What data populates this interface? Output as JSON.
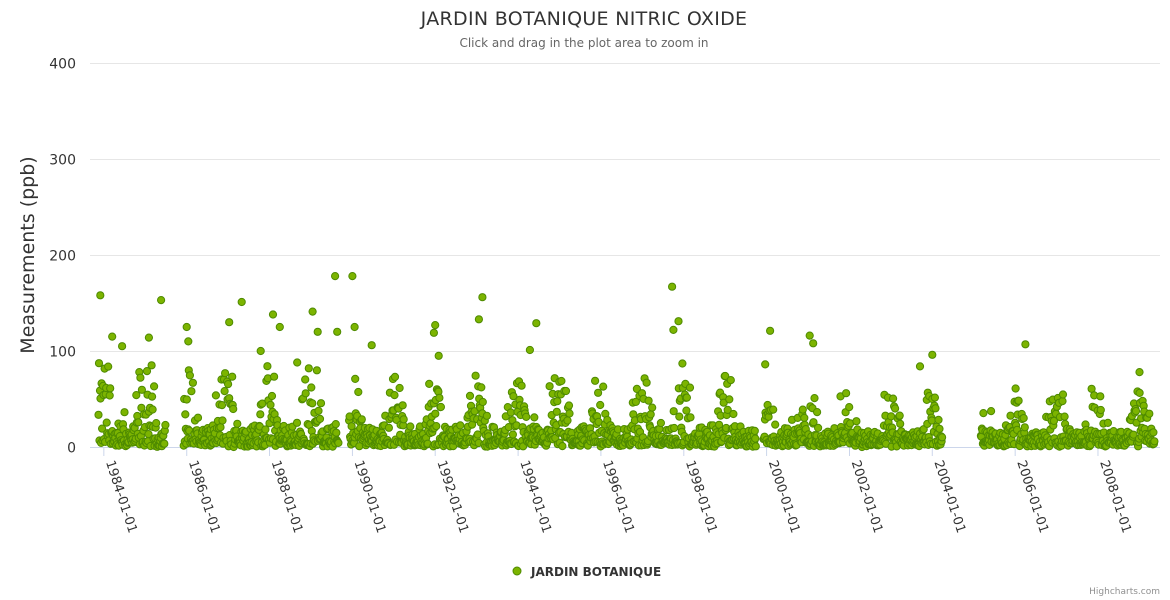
{
  "chart_data": {
    "type": "scatter",
    "title": "JARDIN BOTANIQUE NITRIC OXIDE",
    "subtitle": "Click and drag in the plot area to zoom in",
    "ylabel": "Measurements (ppb)",
    "xlabel": "",
    "ylim": [
      0,
      400
    ],
    "yticks": [
      0,
      100,
      200,
      300,
      400
    ],
    "xlim": [
      "1983-09-01",
      "2009-07-01"
    ],
    "xticks": [
      "1984-01-01",
      "1986-01-01",
      "1988-01-01",
      "1990-01-01",
      "1992-01-01",
      "1994-01-01",
      "1996-01-01",
      "1998-01-01",
      "2000-01-01",
      "2002-01-01",
      "2004-01-01",
      "2006-01-01",
      "2008-01-01"
    ],
    "legend_position": "bottom-center",
    "grid": true,
    "series": [
      {
        "name": "JARDIN BOTANIQUE",
        "color": "#7cb400",
        "edge_color": "#4e8a00",
        "points": [
          {
            "x": "1983-12-01",
            "y": 158
          },
          {
            "x": "1984-03-15",
            "y": 115
          },
          {
            "x": "1984-06-10",
            "y": 105
          },
          {
            "x": "1985-02-01",
            "y": 114
          },
          {
            "x": "1985-05-20",
            "y": 153
          },
          {
            "x": "1986-01-01",
            "y": 125
          },
          {
            "x": "1986-01-15",
            "y": 110
          },
          {
            "x": "1987-01-10",
            "y": 130
          },
          {
            "x": "1987-05-01",
            "y": 151
          },
          {
            "x": "1987-10-15",
            "y": 100
          },
          {
            "x": "1988-02-01",
            "y": 138
          },
          {
            "x": "1988-04-01",
            "y": 125
          },
          {
            "x": "1988-09-01",
            "y": 88
          },
          {
            "x": "1989-01-15",
            "y": 141
          },
          {
            "x": "1989-03-01",
            "y": 120
          },
          {
            "x": "1989-08-01",
            "y": 178
          },
          {
            "x": "1989-08-20",
            "y": 120
          },
          {
            "x": "1990-01-01",
            "y": 178
          },
          {
            "x": "1990-01-20",
            "y": 125
          },
          {
            "x": "1990-06-20",
            "y": 106
          },
          {
            "x": "1991-12-20",
            "y": 119
          },
          {
            "x": "1992-01-01",
            "y": 127
          },
          {
            "x": "1992-02-01",
            "y": 95
          },
          {
            "x": "1993-01-20",
            "y": 133
          },
          {
            "x": "1993-02-20",
            "y": 156
          },
          {
            "x": "1994-04-15",
            "y": 101
          },
          {
            "x": "1994-06-10",
            "y": 129
          },
          {
            "x": "1997-09-20",
            "y": 167
          },
          {
            "x": "1997-10-01",
            "y": 122
          },
          {
            "x": "1997-11-15",
            "y": 131
          },
          {
            "x": "1997-12-20",
            "y": 87
          },
          {
            "x": "1999-12-20",
            "y": 86
          },
          {
            "x": "2000-02-01",
            "y": 121
          },
          {
            "x": "2001-01-15",
            "y": 116
          },
          {
            "x": "2001-02-15",
            "y": 108
          },
          {
            "x": "2003-09-15",
            "y": 84
          },
          {
            "x": "2004-01-01",
            "y": 96
          },
          {
            "x": "2006-04-01",
            "y": 107
          },
          {
            "x": "2009-01-01",
            "y": 78
          }
        ],
        "data_gaps": [
          [
            "1985-07-01",
            "1985-12-01"
          ],
          [
            "1989-09-01",
            "1989-12-01"
          ],
          [
            "1999-10-01",
            "1999-12-01"
          ],
          [
            "2004-04-01",
            "2005-03-01"
          ]
        ],
        "summary": "Dense daily measurements from 1983-11 to 2009-05, mostly 0-60 ppb with winter peaks reaching 80-178 ppb"
      }
    ]
  },
  "legend": {
    "label": "JARDIN BOTANIQUE"
  },
  "credits": "Highcharts.com"
}
